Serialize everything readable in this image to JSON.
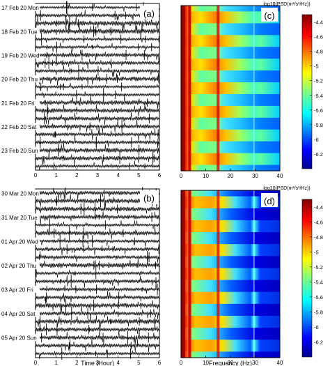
{
  "panels": {
    "a": {
      "tag": "(a)",
      "days": [
        "17 Feb 20 Mon",
        "18 Feb 20 Tue",
        "19 Feb 20 Wed",
        "20 Feb 20 Thu",
        "21 Feb 20 Fri",
        "22 Feb 20 Sat",
        "23 Feb 20 Sun"
      ]
    },
    "b": {
      "tag": "(b)",
      "days": [
        "30 Mar 20 Mon",
        "31 Mar 20 Tue",
        "01 Apr 20 Wed",
        "02 Apr 20 Thu",
        "03 Apr 20 Fri",
        "04 Apr 20 Sat",
        "05 Apr 20 Sun"
      ]
    },
    "c": {
      "tag": "(c)",
      "colorbar_title": "log10(PSD(m²/s²/Hz))"
    },
    "d": {
      "tag": "(d)",
      "colorbar_title": "log10(PSD(m²/s²/Hz))"
    }
  },
  "chart_data": [
    {
      "type": "line",
      "panel": "a",
      "xlabel": "",
      "xlim": [
        0,
        6
      ],
      "x_ticks": [
        "0",
        "1",
        "2",
        "3",
        "4",
        "5",
        "6"
      ],
      "traces_per_day": 3
    },
    {
      "type": "line",
      "panel": "b",
      "xlabel": "Time (Hour)",
      "xlim": [
        0,
        6
      ],
      "x_ticks": [
        "0",
        "1",
        "2",
        "3",
        "4",
        "5",
        "6"
      ],
      "traces_per_day": 3
    },
    {
      "type": "heatmap",
      "panel": "c",
      "xlabel": "",
      "xlim": [
        0,
        40
      ],
      "x_ticks": [
        "0",
        "10",
        "20",
        "30",
        "40"
      ],
      "colorbar": {
        "ticks": [
          "-4.4",
          "-4.6",
          "-4.8",
          "-5",
          "-5.2",
          "-5.4",
          "-5.6",
          "-5.8",
          "-6",
          "-6.2"
        ],
        "range": [
          -6.4,
          -4.3
        ]
      },
      "spectral_bands_hz": [
        {
          "center": 0.8,
          "level": 1.0
        },
        {
          "center": 3.5,
          "level": 0.95
        },
        {
          "center": 15,
          "level": 0.75
        },
        {
          "center": 29.5,
          "level": 0.5
        }
      ]
    },
    {
      "type": "heatmap",
      "panel": "d",
      "xlabel": "Frequency (Hz)",
      "xlim": [
        0,
        40
      ],
      "x_ticks": [
        "0",
        "10",
        "20",
        "30",
        "40"
      ],
      "colorbar": {
        "ticks": [
          "-4.4",
          "-4.6",
          "-4.8",
          "-5",
          "-5.2",
          "-5.4",
          "-5.6",
          "-5.8",
          "-6",
          "-6.2"
        ],
        "range": [
          -6.4,
          -4.3
        ]
      },
      "spectral_bands_hz": [
        {
          "center": 0.8,
          "level": 1.0
        },
        {
          "center": 3.5,
          "level": 0.95
        },
        {
          "center": 15,
          "level": 0.7
        },
        {
          "center": 29.5,
          "level": 0.5
        }
      ]
    }
  ]
}
